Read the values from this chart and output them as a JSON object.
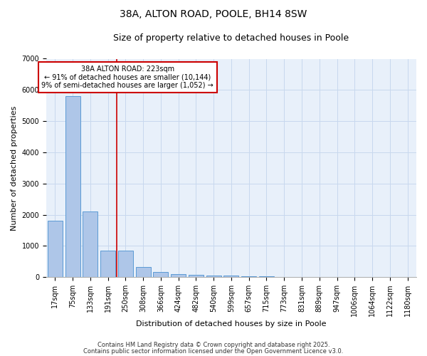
{
  "title1": "38A, ALTON ROAD, POOLE, BH14 8SW",
  "title2": "Size of property relative to detached houses in Poole",
  "xlabel": "Distribution of detached houses by size in Poole",
  "ylabel": "Number of detached properties",
  "bar_labels": [
    "17sqm",
    "75sqm",
    "133sqm",
    "191sqm",
    "250sqm",
    "308sqm",
    "366sqm",
    "424sqm",
    "482sqm",
    "540sqm",
    "599sqm",
    "657sqm",
    "715sqm",
    "773sqm",
    "831sqm",
    "889sqm",
    "947sqm",
    "1006sqm",
    "1064sqm",
    "1122sqm",
    "1180sqm"
  ],
  "bar_values": [
    1800,
    5800,
    2100,
    850,
    850,
    330,
    175,
    100,
    75,
    55,
    40,
    30,
    20,
    15,
    10,
    8,
    5,
    4,
    3,
    2,
    1
  ],
  "bar_color": "#aec6e8",
  "bar_edge_color": "#5b9bd5",
  "bg_color": "#e8f0fa",
  "grid_color": "#c8d8ee",
  "vline_x": 3.5,
  "vline_color": "#cc0000",
  "annotation_title": "38A ALTON ROAD: 223sqm",
  "annotation_line1": "← 91% of detached houses are smaller (10,144)",
  "annotation_line2": "9% of semi-detached houses are larger (1,052) →",
  "annotation_box_color": "#cc0000",
  "ylim": [
    0,
    7000
  ],
  "yticks": [
    0,
    1000,
    2000,
    3000,
    4000,
    5000,
    6000,
    7000
  ],
  "footnote1": "Contains HM Land Registry data © Crown copyright and database right 2025.",
  "footnote2": "Contains public sector information licensed under the Open Government Licence v3.0.",
  "title_fontsize": 10,
  "subtitle_fontsize": 9,
  "axis_label_fontsize": 8,
  "tick_fontsize": 7,
  "annotation_fontsize": 7,
  "footnote_fontsize": 6
}
